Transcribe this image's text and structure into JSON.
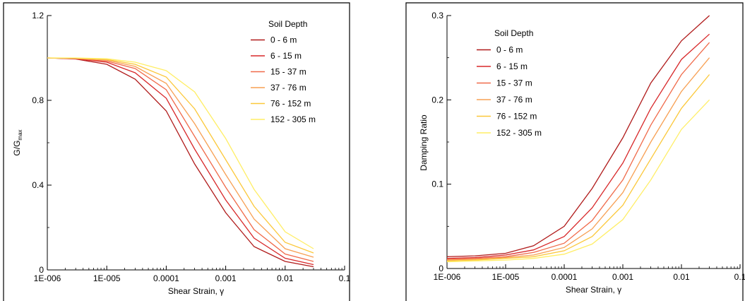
{
  "chart_data": [
    {
      "type": "line",
      "xlabel": "Shear Strain, γ",
      "ylabel": {
        "main": "G/G",
        "sub": "max"
      },
      "xscale": "log",
      "xlim": [
        1e-06,
        0.1
      ],
      "ylim": [
        0,
        1.2
      ],
      "xticks": [
        {
          "v": 1e-06,
          "label": "1E-006"
        },
        {
          "v": 1e-05,
          "label": "1E-005"
        },
        {
          "v": 0.0001,
          "label": "0.0001"
        },
        {
          "v": 0.001,
          "label": "0.001"
        },
        {
          "v": 0.01,
          "label": "0.01"
        },
        {
          "v": 0.1,
          "label": "0.1"
        }
      ],
      "yticks": [
        {
          "v": 0,
          "label": "0"
        },
        {
          "v": 0.4,
          "label": "0.4"
        },
        {
          "v": 0.8,
          "label": "0.8"
        },
        {
          "v": 1.2,
          "label": "1.2"
        }
      ],
      "grid": false,
      "legend_title": "Soil Depth",
      "legend_position": "top-right",
      "x": [
        1e-06,
        3e-06,
        1e-05,
        3e-05,
        0.0001,
        0.0003,
        0.001,
        0.003,
        0.01,
        0.03
      ],
      "series": [
        {
          "name": "0 - 6 m",
          "color": "#b01a1a",
          "values": [
            1.0,
            0.995,
            0.97,
            0.9,
            0.75,
            0.5,
            0.27,
            0.11,
            0.04,
            0.015
          ]
        },
        {
          "name": "6 - 15 m",
          "color": "#d8282a",
          "values": [
            1.0,
            0.996,
            0.98,
            0.93,
            0.81,
            0.57,
            0.33,
            0.15,
            0.055,
            0.025
          ]
        },
        {
          "name": "15 - 37 m",
          "color": "#f06a4a",
          "values": [
            1.0,
            0.997,
            0.985,
            0.95,
            0.85,
            0.63,
            0.39,
            0.19,
            0.075,
            0.04
          ]
        },
        {
          "name": "37 - 76 m",
          "color": "#f7a054",
          "values": [
            1.0,
            0.998,
            0.99,
            0.96,
            0.88,
            0.69,
            0.45,
            0.24,
            0.1,
            0.06
          ]
        },
        {
          "name": "76 - 152 m",
          "color": "#fbc83a",
          "values": [
            1.0,
            0.999,
            0.993,
            0.97,
            0.91,
            0.76,
            0.52,
            0.3,
            0.13,
            0.08
          ]
        },
        {
          "name": "152 - 305 m",
          "color": "#ffee66",
          "values": [
            1.0,
            1.0,
            0.996,
            0.98,
            0.94,
            0.84,
            0.62,
            0.38,
            0.18,
            0.1
          ]
        }
      ]
    },
    {
      "type": "line",
      "xlabel": "Shear Strain, γ",
      "ylabel": {
        "main": "Damping Ratio",
        "sub": ""
      },
      "xscale": "log",
      "xlim": [
        1e-06,
        0.1
      ],
      "ylim": [
        0,
        0.3
      ],
      "xticks": [
        {
          "v": 1e-06,
          "label": "1E-006"
        },
        {
          "v": 1e-05,
          "label": "1E-005"
        },
        {
          "v": 0.0001,
          "label": "0.0001"
        },
        {
          "v": 0.001,
          "label": "0.001"
        },
        {
          "v": 0.01,
          "label": "0.01"
        },
        {
          "v": 0.1,
          "label": "0.1"
        }
      ],
      "yticks": [
        {
          "v": 0,
          "label": "0"
        },
        {
          "v": 0.1,
          "label": "0.1"
        },
        {
          "v": 0.2,
          "label": "0.2"
        },
        {
          "v": 0.3,
          "label": "0.3"
        }
      ],
      "grid": false,
      "legend_title": "Soil Depth",
      "legend_position": "top-left",
      "x": [
        1e-06,
        3e-06,
        1e-05,
        3e-05,
        0.0001,
        0.0003,
        0.001,
        0.003,
        0.01,
        0.03
      ],
      "series": [
        {
          "name": "0 - 6 m",
          "color": "#b01a1a",
          "values": [
            0.014,
            0.015,
            0.018,
            0.027,
            0.05,
            0.095,
            0.155,
            0.22,
            0.27,
            0.3
          ]
        },
        {
          "name": "6 - 15 m",
          "color": "#d8282a",
          "values": [
            0.012,
            0.013,
            0.016,
            0.022,
            0.038,
            0.072,
            0.125,
            0.19,
            0.248,
            0.278
          ]
        },
        {
          "name": "15 - 37 m",
          "color": "#f06a4a",
          "values": [
            0.011,
            0.012,
            0.014,
            0.019,
            0.03,
            0.057,
            0.105,
            0.17,
            0.23,
            0.268
          ]
        },
        {
          "name": "37 - 76 m",
          "color": "#f7a054",
          "values": [
            0.01,
            0.011,
            0.013,
            0.016,
            0.025,
            0.047,
            0.09,
            0.15,
            0.21,
            0.25
          ]
        },
        {
          "name": "76 - 152 m",
          "color": "#fbc83a",
          "values": [
            0.009,
            0.01,
            0.012,
            0.014,
            0.021,
            0.038,
            0.075,
            0.13,
            0.19,
            0.23
          ]
        },
        {
          "name": "152 - 305 m",
          "color": "#ffee66",
          "values": [
            0.008,
            0.009,
            0.01,
            0.012,
            0.017,
            0.029,
            0.058,
            0.105,
            0.165,
            0.2
          ]
        }
      ]
    }
  ]
}
